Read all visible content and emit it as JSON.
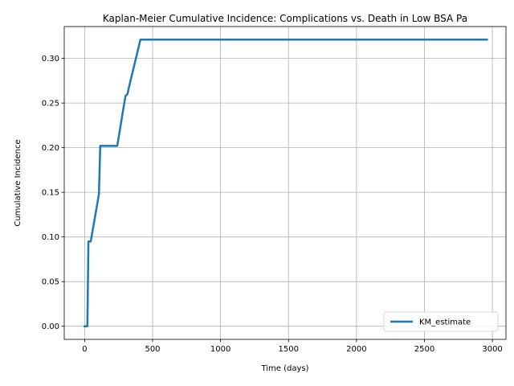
{
  "chart_data": {
    "type": "line",
    "title": "Kaplan-Meier Cumulative Incidence: Complications vs. Death in Low BSA Pa",
    "xlabel": "Time (days)",
    "ylabel": "Cumulative Incidence",
    "xlim": [
      -150,
      3100
    ],
    "ylim": [
      -0.0147,
      0.3357
    ],
    "xticks": [
      0,
      500,
      1000,
      1500,
      2000,
      2500,
      3000
    ],
    "xtick_labels": [
      "0",
      "500",
      "1000",
      "1500",
      "2000",
      "2500",
      "3000"
    ],
    "yticks": [
      0.0,
      0.05,
      0.1,
      0.15,
      0.2,
      0.25,
      0.3
    ],
    "ytick_labels": [
      "0.00",
      "0.05",
      "0.10",
      "0.15",
      "0.20",
      "0.25",
      "0.30"
    ],
    "grid": true,
    "legend_position": "lower right",
    "series": [
      {
        "name": "KM_estimate",
        "color": "#1f77b4",
        "x": [
          0,
          15,
          20,
          28,
          35,
          45,
          105,
          115,
          145,
          240,
          300,
          315,
          330,
          410,
          2960
        ],
        "y": [
          0.0,
          0.0,
          0.0,
          0.095,
          0.095,
          0.095,
          0.148,
          0.202,
          0.202,
          0.202,
          0.258,
          0.26,
          0.27,
          0.321,
          0.321
        ]
      }
    ]
  }
}
